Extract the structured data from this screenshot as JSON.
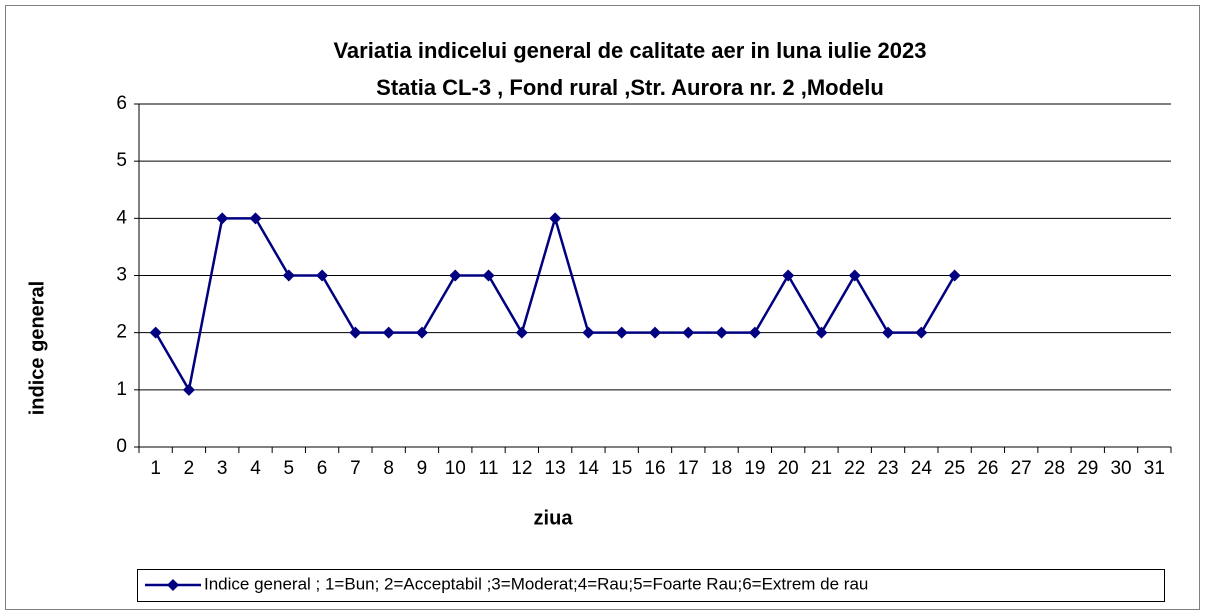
{
  "chart_data": {
    "type": "line",
    "title": "Variatia indicelui general de calitate aer in luna iulie 2023",
    "subtitle": "Statia CL-3 , Fond rural ,Str. Aurora nr. 2 ,Modelu",
    "x_label": "ziua",
    "y_label": "indice general",
    "categories": [
      1,
      2,
      3,
      4,
      5,
      6,
      7,
      8,
      9,
      10,
      11,
      12,
      13,
      14,
      15,
      16,
      17,
      18,
      19,
      20,
      21,
      22,
      23,
      24,
      25,
      26,
      27,
      28,
      29,
      30,
      31
    ],
    "series": [
      {
        "name": "Indice  general ; 1=Bun; 2=Acceptabil ;3=Moderat;4=Rau;5=Foarte Rau;6=Extrem de rau",
        "color": "#000080",
        "values": [
          2,
          1,
          4,
          4,
          3,
          3,
          2,
          2,
          2,
          3,
          3,
          2,
          4,
          2,
          2,
          2,
          2,
          2,
          2,
          3,
          2,
          3,
          2,
          2,
          3,
          null,
          null,
          null,
          null,
          null,
          null
        ]
      }
    ],
    "ylim": [
      0,
      6
    ],
    "yticks": [
      0,
      1,
      2,
      3,
      4,
      5,
      6
    ],
    "grid": true,
    "legend": "bottom"
  }
}
